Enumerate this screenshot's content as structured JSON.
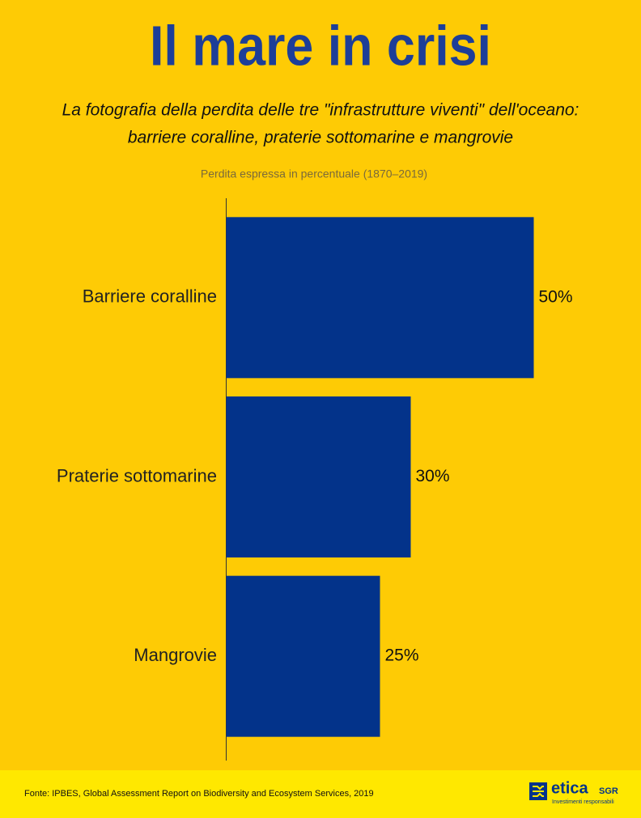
{
  "chart_data": {
    "type": "hbar",
    "title": "Il mare in crisi",
    "subtitle": [
      "La fotografia della perdita delle tre \"infrastrutture viventi\" dell'oceano:",
      "barriere coralline, praterie sottomarine e mangrovie"
    ],
    "note": "Perdita espressa in percentuale (1870–2019)",
    "categories": [
      "Barriere coralline",
      "Praterie sottomarine",
      "Mangrovie"
    ],
    "values": [
      50,
      30,
      25
    ],
    "value_labels": [
      "50%",
      "30%",
      "25%"
    ],
    "color": "#03338a",
    "xlim": [
      0,
      50
    ]
  },
  "footer": {
    "source": "Fonte: IPBES, Global Assessment Report on Biodiversity and Ecosystem Services, 2019",
    "logo_name": "etica",
    "logo_suffix": "SGR",
    "logo_tagline": "Investimenti responsabili"
  }
}
